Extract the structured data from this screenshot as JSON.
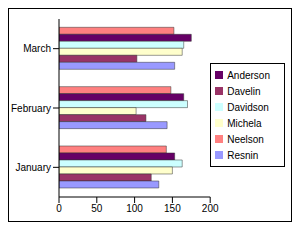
{
  "chart_data": {
    "type": "bar",
    "orientation": "horizontal",
    "categories": [
      "March",
      "February",
      "January"
    ],
    "series": [
      {
        "name": "Neelson",
        "color": "#ff8080",
        "values": [
          152,
          148,
          142
        ]
      },
      {
        "name": "Anderson",
        "color": "#660066",
        "values": [
          175,
          165,
          153
        ]
      },
      {
        "name": "Davidson",
        "color": "#ccffff",
        "values": [
          165,
          170,
          163
        ]
      },
      {
        "name": "Michela",
        "color": "#ffffcc",
        "values": [
          163,
          102,
          150
        ]
      },
      {
        "name": "Davelin",
        "color": "#993366",
        "values": [
          103,
          115,
          122
        ]
      },
      {
        "name": "Resnin",
        "color": "#9999ff",
        "values": [
          153,
          143,
          132
        ]
      }
    ],
    "xlim": [
      0,
      200
    ],
    "xticks": [
      0,
      50,
      100,
      150,
      200
    ],
    "grid": false,
    "legend": "right"
  }
}
